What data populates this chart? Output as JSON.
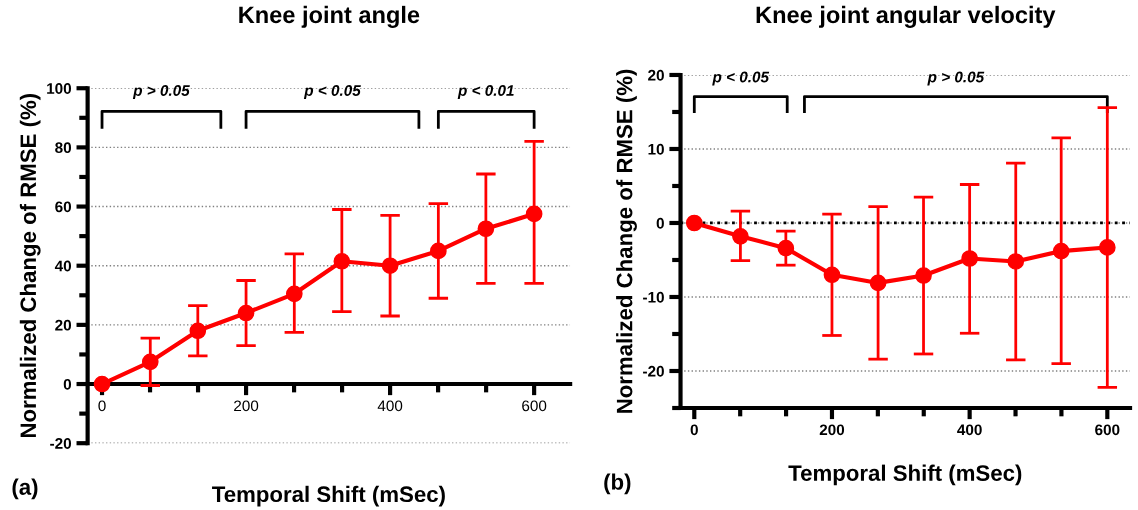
{
  "chart_data": [
    {
      "type": "line",
      "title": "Knee joint angle",
      "xlabel": "Temporal Shift (mSec)",
      "ylabel": "Normalized Change of RMSE (%)",
      "x": [
        0,
        67,
        133,
        200,
        267,
        333,
        400,
        467,
        533,
        600
      ],
      "series": [
        {
          "color": "#ff0000",
          "values": [
            0,
            7.5,
            18,
            24,
            30.5,
            41.5,
            40,
            45,
            52.5,
            57.5
          ],
          "errors": [
            null,
            [
              -0.5,
              15.5
            ],
            [
              9.5,
              26.5
            ],
            [
              13,
              35
            ],
            [
              17.5,
              44
            ],
            [
              24.5,
              59
            ],
            [
              23,
              57
            ],
            [
              29,
              61
            ],
            [
              34,
              71
            ],
            [
              34,
              82
            ]
          ]
        }
      ],
      "xlim": [
        -20,
        650
      ],
      "xticks": [
        0,
        200,
        400,
        600
      ],
      "ylim": [
        -20,
        100
      ],
      "yticks": [
        -20,
        0,
        20,
        40,
        60,
        80,
        100
      ],
      "grid": "y",
      "marker": "circle",
      "line_style": "solid",
      "legend": false,
      "annotations": [
        "p > 0.05",
        "p < 0.05",
        "p < 0.01",
        "(a)"
      ]
    },
    {
      "type": "line",
      "title": "Knee joint angular velocity",
      "xlabel": "Temporal Shift (mSec)",
      "ylabel": "Normalized Change of RMSE (%)",
      "x": [
        0,
        67,
        133,
        200,
        267,
        333,
        400,
        467,
        533,
        600
      ],
      "series": [
        {
          "color": "#ff0000",
          "values": [
            0,
            -1.8,
            -3.4,
            -7,
            -8.1,
            -7.1,
            -4.8,
            -5.2,
            -3.8,
            -3.3
          ],
          "errors": [
            null,
            [
              -5.1,
              1.6
            ],
            [
              -5.7,
              -1.1
            ],
            [
              -15.2,
              1.2
            ],
            [
              -18.4,
              2.2
            ],
            [
              -17.7,
              3.5
            ],
            [
              -14.9,
              5.2
            ],
            [
              -18.5,
              8.1
            ],
            [
              -19,
              11.5
            ],
            [
              -22.2,
              15.6
            ]
          ]
        }
      ],
      "xlim": [
        -20,
        633
      ],
      "xticks": [
        0,
        200,
        400,
        600
      ],
      "ylim": [
        -25,
        20
      ],
      "yticks": [
        -20,
        -10,
        0,
        10,
        20
      ],
      "grid": "y",
      "marker": "circle",
      "line_style": "solid",
      "legend": false,
      "ref_lines": [
        {
          "axis": "y",
          "value": 0,
          "color": "#000000",
          "line_style": "dotted"
        }
      ],
      "annotations": [
        "p < 0.05",
        "p > 0.05",
        "(b)"
      ]
    }
  ]
}
